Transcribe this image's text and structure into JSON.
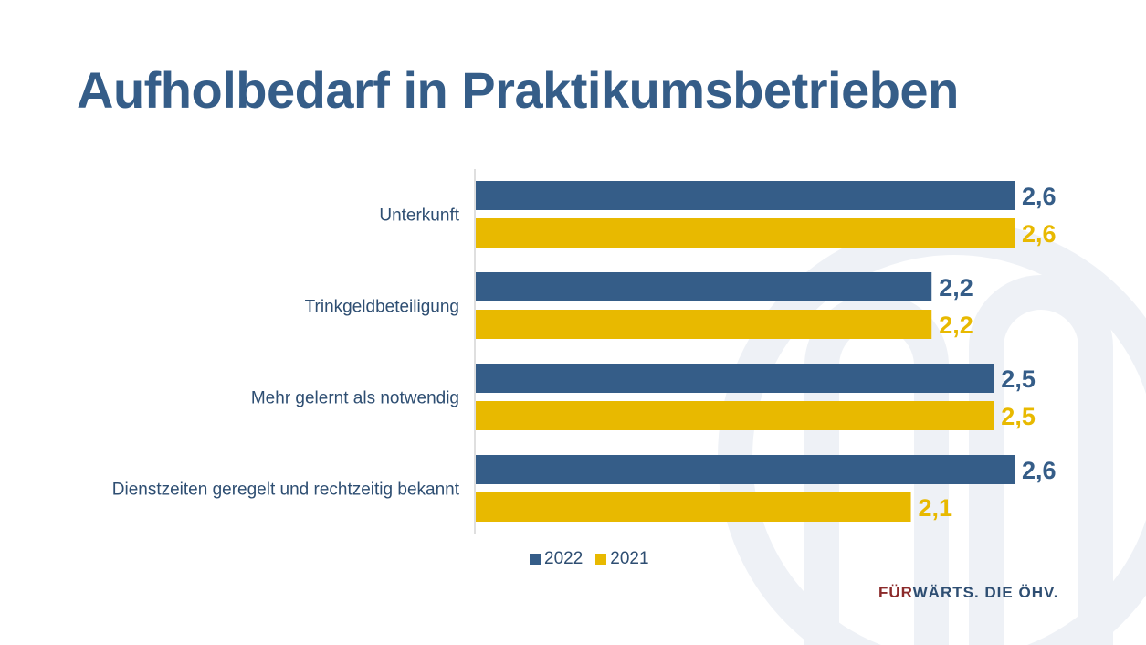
{
  "slide": {
    "title": "Aufholbedarf in Praktikumsbetrieben"
  },
  "brand": {
    "part1": "FÜR",
    "part2": "WÄRTS. DIE ÖHV."
  },
  "colors": {
    "series_2022": "#355d88",
    "series_2021": "#e8b900",
    "title": "#355d88",
    "brand_accent": "#8b2a2a"
  },
  "chart_data": {
    "type": "bar",
    "orientation": "horizontal",
    "categories": [
      "Unterkunft",
      "Trinkgeldbeteiligung",
      "Mehr gelernt als notwendig",
      "Dienstzeiten geregelt und rechtzeitig bekannt"
    ],
    "series": [
      {
        "name": "2022",
        "values": [
          2.6,
          2.2,
          2.5,
          2.6
        ],
        "labels": [
          "2,6",
          "2,2",
          "2,5",
          "2,6"
        ]
      },
      {
        "name": "2021",
        "values": [
          2.6,
          2.2,
          2.5,
          2.1
        ],
        "labels": [
          "2,6",
          "2,2",
          "2,5",
          "2,1"
        ]
      }
    ],
    "xlim": [
      0,
      2.6
    ],
    "grid": false,
    "legend": "bottom"
  }
}
